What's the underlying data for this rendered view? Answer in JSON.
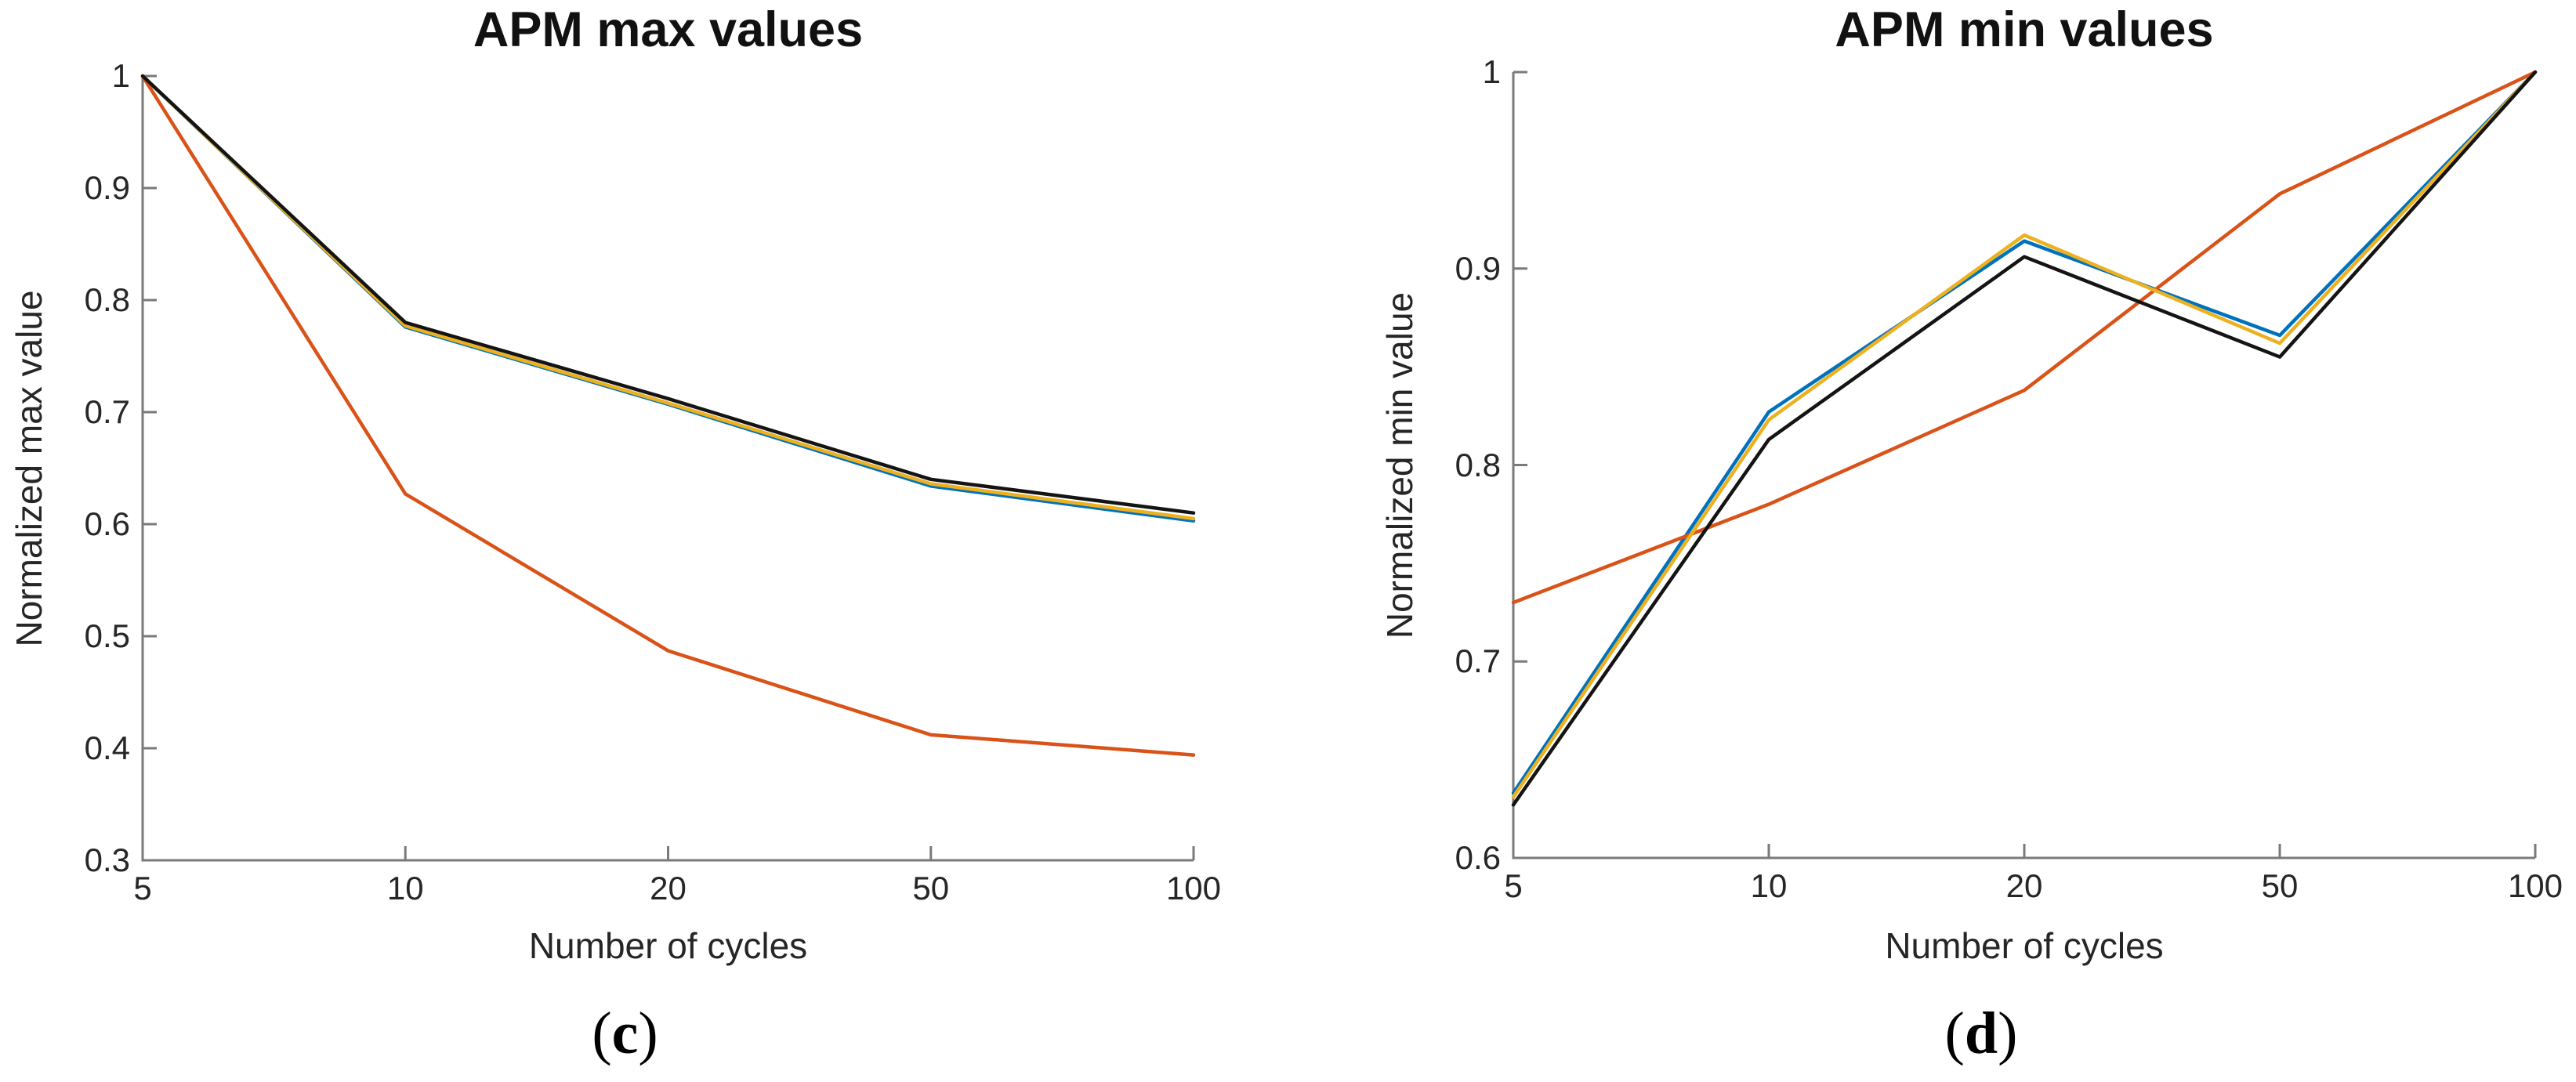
{
  "figure": {
    "background": "#ffffff",
    "axis_color": "#7a7a7a",
    "text_color": "#262626"
  },
  "chart_data": [
    {
      "type": "line",
      "title": "APM max values",
      "xlabel": "Number of cycles",
      "ylabel": "Normalized max value",
      "caption_open": "(",
      "caption_letter": "c",
      "caption_close": ")",
      "x": [
        5,
        10,
        20,
        50,
        100
      ],
      "x_tick_labels": [
        "5",
        "10",
        "20",
        "50",
        "100"
      ],
      "ylim": [
        0.3,
        1.0
      ],
      "yticks": [
        0.3,
        0.4,
        0.5,
        0.6,
        0.7,
        0.8,
        0.9,
        1.0
      ],
      "ytick_labels": [
        "0.3",
        "0.4",
        "0.5",
        "0.6",
        "0.7",
        "0.8",
        "0.9",
        "1"
      ],
      "grid": false,
      "legend": "none",
      "x_spacing": "equal-interval ticks",
      "series": [
        {
          "name": "blue",
          "color": "#0072BD",
          "values": [
            1.0,
            0.776,
            0.707,
            0.634,
            0.603
          ]
        },
        {
          "name": "orange",
          "color": "#D95319",
          "values": [
            1.0,
            0.627,
            0.487,
            0.412,
            0.394
          ]
        },
        {
          "name": "yellow",
          "color": "#EDB120",
          "values": [
            1.0,
            0.777,
            0.708,
            0.636,
            0.605
          ]
        },
        {
          "name": "black",
          "color": "#141414",
          "values": [
            1.0,
            0.78,
            0.712,
            0.64,
            0.61
          ]
        }
      ]
    },
    {
      "type": "line",
      "title": "APM min values",
      "xlabel": "Number of cycles",
      "ylabel": "Normalized min value",
      "caption_open": "(",
      "caption_letter": "d",
      "caption_close": ")",
      "x": [
        5,
        10,
        20,
        50,
        100
      ],
      "x_tick_labels": [
        "5",
        "10",
        "20",
        "50",
        "100"
      ],
      "ylim": [
        0.6,
        1.0
      ],
      "yticks": [
        0.6,
        0.7,
        0.8,
        0.9,
        1.0
      ],
      "ytick_labels": [
        "0.6",
        "0.7",
        "0.8",
        "0.9",
        "1"
      ],
      "grid": false,
      "legend": "none",
      "x_spacing": "equal-interval ticks",
      "series": [
        {
          "name": "blue",
          "color": "#0072BD",
          "values": [
            0.633,
            0.827,
            0.914,
            0.866,
            1.0
          ]
        },
        {
          "name": "orange",
          "color": "#D95319",
          "values": [
            0.73,
            0.78,
            0.838,
            0.938,
            1.0
          ]
        },
        {
          "name": "yellow",
          "color": "#EDB120",
          "values": [
            0.631,
            0.823,
            0.917,
            0.862,
            1.0
          ]
        },
        {
          "name": "black",
          "color": "#141414",
          "values": [
            0.627,
            0.813,
            0.906,
            0.855,
            1.0
          ]
        }
      ]
    }
  ]
}
